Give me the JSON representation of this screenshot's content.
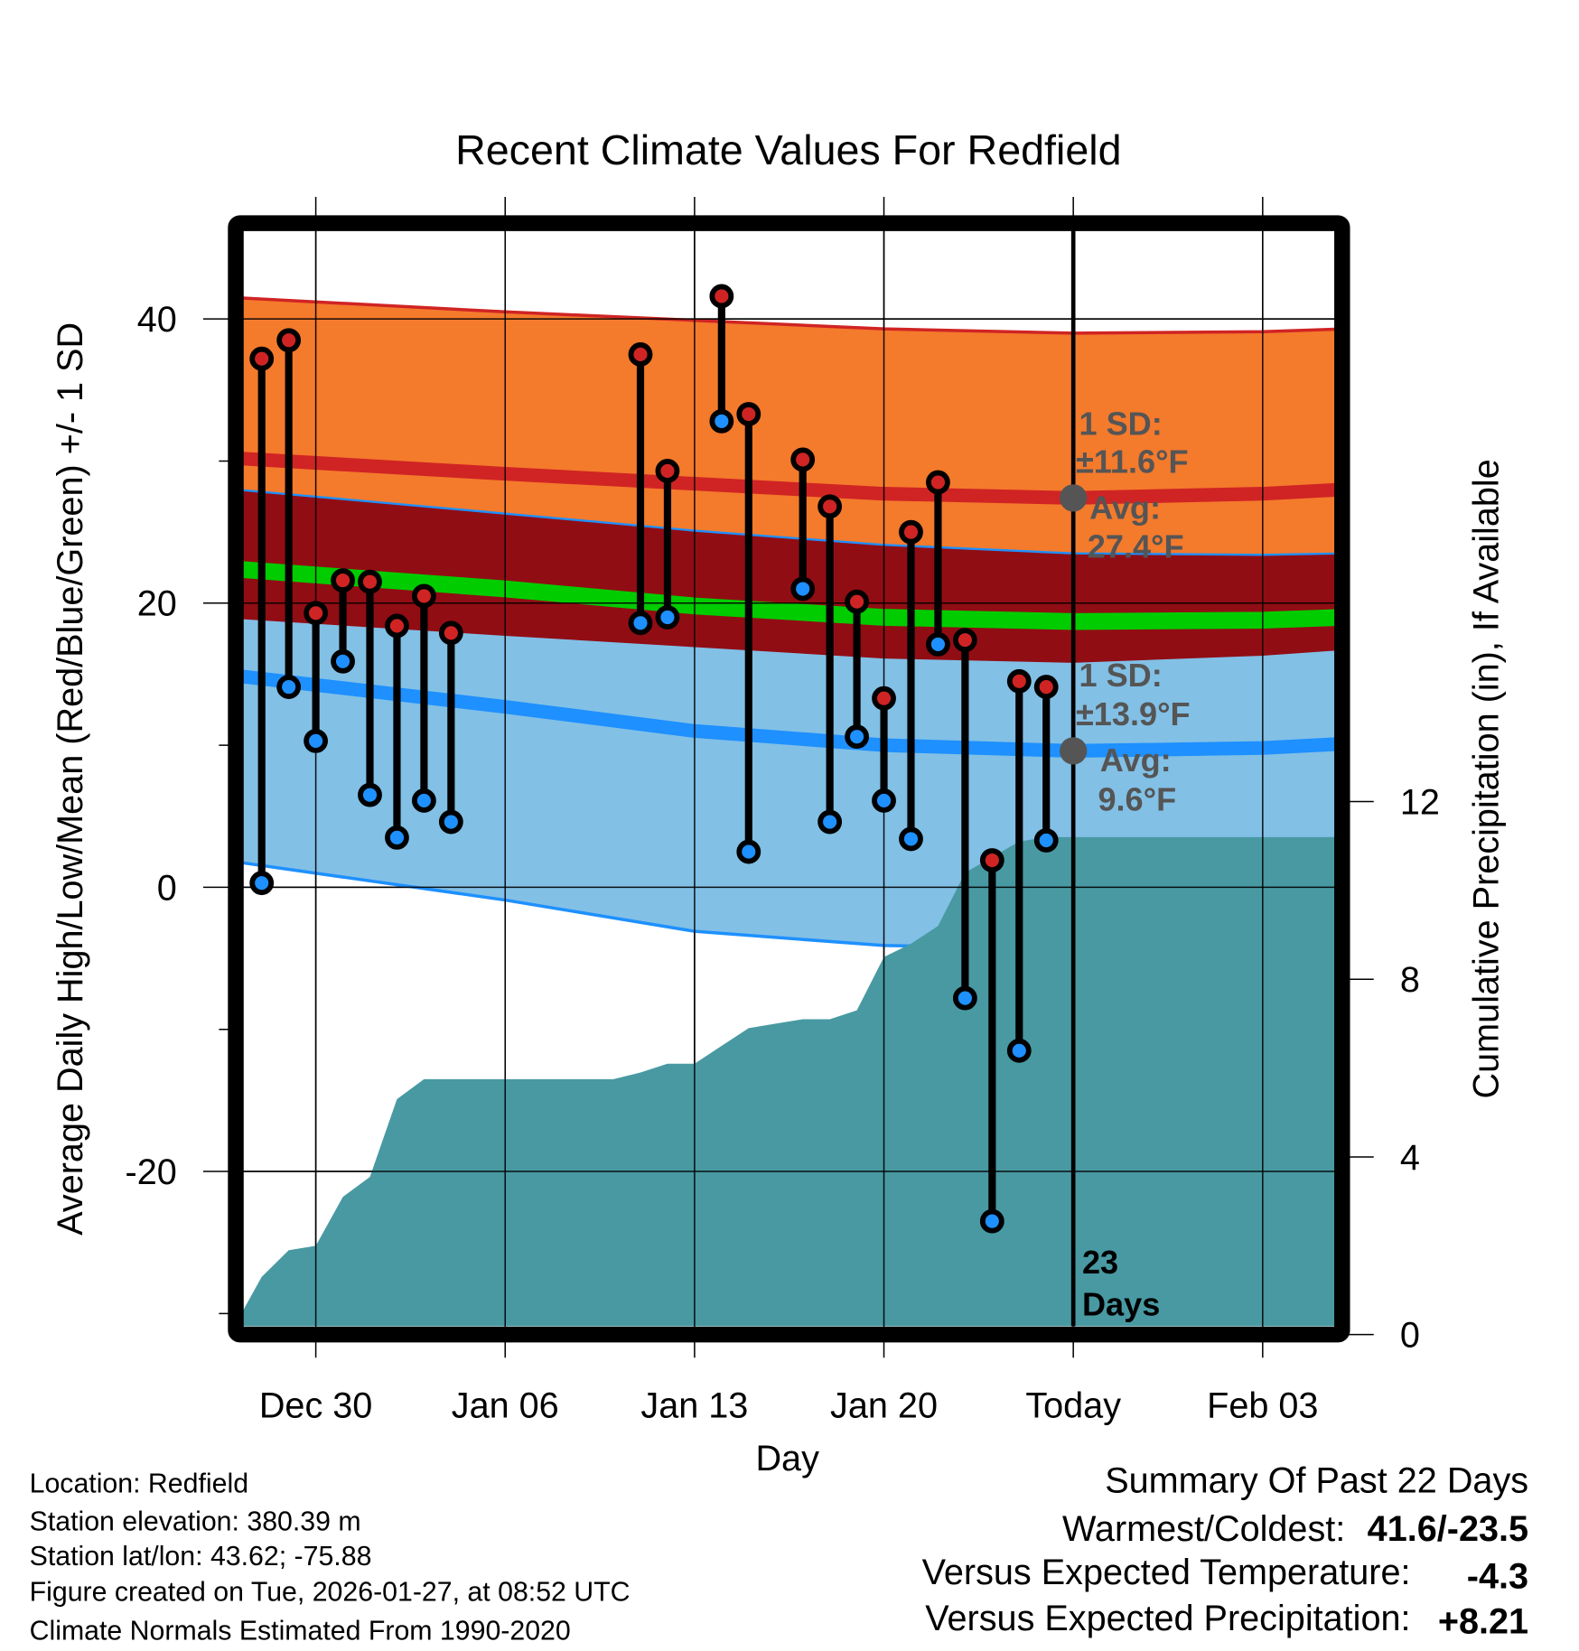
{
  "chart_data": {
    "type": "line",
    "title": "Recent Climate Values For Redfield",
    "xlabel": "Day",
    "ylabel": "Average Daily High/Low/Mean (Red/Blue/Green) +/- 1 SD",
    "y2label": "Cumulative Precipitation (in), If Available",
    "x_range": [
      "2025-12-27",
      "2026-02-06"
    ],
    "ylim": [
      -31,
      45
    ],
    "y2lim": [
      0,
      22
    ],
    "x_ticks": [
      {
        "date": "2025-12-30",
        "label": "Dec 30"
      },
      {
        "date": "2026-01-06",
        "label": "Jan 06"
      },
      {
        "date": "2026-01-13",
        "label": "Jan 13"
      },
      {
        "date": "2026-01-20",
        "label": "Jan 20"
      },
      {
        "date": "2026-01-27",
        "label": "Today"
      },
      {
        "date": "2026-02-03",
        "label": "Feb 03"
      }
    ],
    "y_ticks": [
      {
        "v": 40,
        "label": "40"
      },
      {
        "v": 20,
        "label": "20"
      },
      {
        "v": 0,
        "label": "0"
      },
      {
        "v": -20,
        "label": "-20"
      }
    ],
    "y_minor_ticks": [
      30,
      10,
      -10,
      -30
    ],
    "y2_ticks": [
      {
        "v": 0,
        "label": "0"
      },
      {
        "v": 4,
        "label": "4"
      },
      {
        "v": 8,
        "label": "8"
      },
      {
        "v": 12,
        "label": "12"
      }
    ],
    "grid": true,
    "observations": [
      {
        "date": "2025-12-28",
        "high": 37.2,
        "low": 0.3
      },
      {
        "date": "2025-12-29",
        "high": 38.5,
        "low": 14.1
      },
      {
        "date": "2025-12-30",
        "high": 19.3,
        "low": 10.3
      },
      {
        "date": "2025-12-31",
        "high": 21.6,
        "low": 15.9
      },
      {
        "date": "2026-01-01",
        "high": 21.5,
        "low": 6.5
      },
      {
        "date": "2026-01-02",
        "high": 18.4,
        "low": 3.5
      },
      {
        "date": "2026-01-03",
        "high": 20.5,
        "low": 6.1
      },
      {
        "date": "2026-01-04",
        "high": 17.9,
        "low": 4.6
      },
      {
        "date": "2026-01-11",
        "high": 37.5,
        "low": 18.6
      },
      {
        "date": "2026-01-12",
        "high": 29.3,
        "low": 19.0
      },
      {
        "date": "2026-01-14",
        "high": 41.6,
        "low": 32.8
      },
      {
        "date": "2026-01-15",
        "high": 33.3,
        "low": 2.5
      },
      {
        "date": "2026-01-17",
        "high": 30.1,
        "low": 21.0
      },
      {
        "date": "2026-01-18",
        "high": 26.8,
        "low": 4.6
      },
      {
        "date": "2026-01-19",
        "high": 20.1,
        "low": 10.6
      },
      {
        "date": "2026-01-20",
        "high": 13.3,
        "low": 6.1
      },
      {
        "date": "2026-01-21",
        "high": 25.0,
        "low": 3.4
      },
      {
        "date": "2026-01-22",
        "high": 28.5,
        "low": 17.1
      },
      {
        "date": "2026-01-23",
        "high": 17.4,
        "low": -7.8
      },
      {
        "date": "2026-01-24",
        "high": 1.9,
        "low": -23.5
      },
      {
        "date": "2026-01-25",
        "high": 14.5,
        "low": -11.5
      },
      {
        "date": "2026-01-26",
        "high": 14.1,
        "low": 3.3
      }
    ],
    "normals": [
      {
        "date": "2025-12-27",
        "high_avg": 30.2,
        "high_sd": 11.3,
        "low_avg": 14.9,
        "low_sd": 13.1,
        "mean": 22.4
      },
      {
        "date": "2026-01-06",
        "high_avg": 29.1,
        "high_sd": 11.4,
        "low_avg": 12.7,
        "low_sd": 13.6,
        "mean": 21.0
      },
      {
        "date": "2026-01-13",
        "high_avg": 28.4,
        "high_sd": 11.5,
        "low_avg": 11.0,
        "low_sd": 14.1,
        "mean": 19.8
      },
      {
        "date": "2026-01-20",
        "high_avg": 27.7,
        "high_sd": 11.6,
        "low_avg": 10.0,
        "low_sd": 14.1,
        "mean": 19.0
      },
      {
        "date": "2026-01-27",
        "high_avg": 27.4,
        "high_sd": 11.6,
        "low_avg": 9.6,
        "low_sd": 13.9,
        "mean": 18.7
      },
      {
        "date": "2026-02-03",
        "high_avg": 27.7,
        "high_sd": 11.4,
        "low_avg": 9.8,
        "low_sd": 13.6,
        "mean": 18.8
      },
      {
        "date": "2026-02-06",
        "high_avg": 28.0,
        "high_sd": 11.3,
        "low_avg": 10.1,
        "low_sd": 13.4,
        "mean": 19.0
      }
    ],
    "cumulative_precip": [
      {
        "date": "2025-12-27",
        "v": 0.2
      },
      {
        "date": "2025-12-28",
        "v": 1.3
      },
      {
        "date": "2025-12-29",
        "v": 1.9
      },
      {
        "date": "2025-12-30",
        "v": 2.0
      },
      {
        "date": "2025-12-31",
        "v": 3.1
      },
      {
        "date": "2026-01-01",
        "v": 3.55
      },
      {
        "date": "2026-01-02",
        "v": 5.3
      },
      {
        "date": "2026-01-03",
        "v": 5.75
      },
      {
        "date": "2026-01-10",
        "v": 5.75
      },
      {
        "date": "2026-01-11",
        "v": 5.9
      },
      {
        "date": "2026-01-12",
        "v": 6.1
      },
      {
        "date": "2026-01-13",
        "v": 6.1
      },
      {
        "date": "2026-01-14",
        "v": 6.5
      },
      {
        "date": "2026-01-15",
        "v": 6.9
      },
      {
        "date": "2026-01-16",
        "v": 7.0
      },
      {
        "date": "2026-01-17",
        "v": 7.1
      },
      {
        "date": "2026-01-18",
        "v": 7.1
      },
      {
        "date": "2026-01-19",
        "v": 7.3
      },
      {
        "date": "2026-01-20",
        "v": 8.5
      },
      {
        "date": "2026-01-21",
        "v": 8.8
      },
      {
        "date": "2026-01-22",
        "v": 9.2
      },
      {
        "date": "2026-01-23",
        "v": 10.4
      },
      {
        "date": "2026-01-24",
        "v": 10.75
      },
      {
        "date": "2026-01-25",
        "v": 11.1
      },
      {
        "date": "2026-01-26",
        "v": 11.2
      },
      {
        "date": "2026-02-06",
        "v": 11.2
      }
    ],
    "today": "2026-01-27",
    "annotations": {
      "high_sd_label": "1 SD:",
      "high_sd_value": "±11.6°F",
      "high_avg_label": "Avg:",
      "high_avg_value": "27.4°F",
      "low_sd_label": "1 SD:",
      "low_sd_value": "±13.9°F",
      "low_avg_label": "Avg:",
      "low_avg_value": "9.6°F",
      "days_count": "23",
      "days_label": "Days"
    },
    "colors": {
      "high_band": "#f47a2c",
      "high_avg": "#d02424",
      "overlap": "#910d14",
      "low_band": "#82c0e6",
      "low_avg": "#1e90ff",
      "mean": "#00cc00",
      "precip": "#4899a2",
      "high_marker": "#d02424",
      "low_marker": "#1e90ff",
      "annotation_dot": "#555555"
    }
  },
  "footer": {
    "location": "Location: Redfield",
    "elevation": "Station elevation: 380.39 m",
    "latlon": "Station lat/lon: 43.62; -75.88",
    "created": "Figure created on Tue, 2026-01-27, at 08:52 UTC",
    "normals": "Climate Normals Estimated From 1990-2020"
  },
  "summary": {
    "title": "Summary Of Past 22 Days",
    "warmest_coldest_label": "Warmest/Coldest:",
    "warmest_coldest_value": "41.6/-23.5",
    "temp_label": "Versus Expected Temperature:",
    "temp_value": "-4.3",
    "temp_color": "#1e90ff",
    "precip_label": "Versus Expected Precipitation:",
    "precip_value": "+8.21",
    "precip_color": "#00c000"
  }
}
